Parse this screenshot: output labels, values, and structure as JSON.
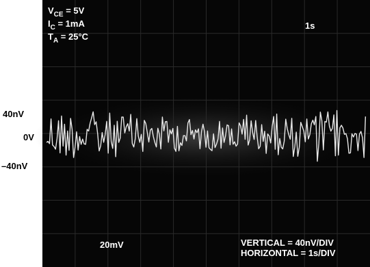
{
  "axis_labels": [
    "40nV",
    "0V",
    "–40nV"
  ],
  "conditions": [
    {
      "symbol": "V",
      "subscript": "CE",
      "rest": " = 5V"
    },
    {
      "symbol": "I",
      "subscript": "C",
      "rest": " = 1mA"
    },
    {
      "symbol": "T",
      "subscript": "A",
      "rest": " = 25°C"
    }
  ],
  "timebase_readout": "1s",
  "channel_readout": "20mV",
  "scale_notes": [
    "VERTICAL = 40nV/DIV",
    "HORIZONTAL = 1s/DIV"
  ]
}
